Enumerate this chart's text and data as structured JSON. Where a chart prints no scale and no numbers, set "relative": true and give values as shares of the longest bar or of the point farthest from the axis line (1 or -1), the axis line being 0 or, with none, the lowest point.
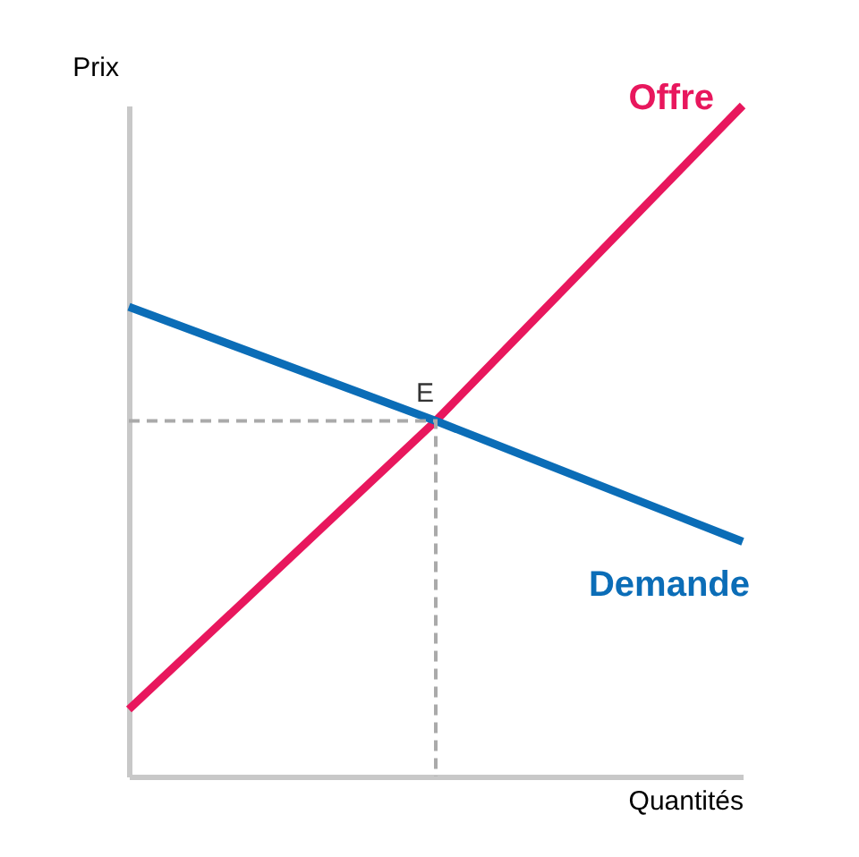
{
  "chart_data": {
    "type": "line",
    "relative": true,
    "xlabel": "Quantités",
    "ylabel": "Prix",
    "categories": [
      null,
      null,
      null
    ],
    "annotations": [
      {
        "text": "E",
        "y": 0.53
      }
    ],
    "series": [
      {
        "name": "Offre",
        "color": "#e8175d",
        "values": [
          0.1,
          0.53,
          1
        ]
      },
      {
        "name": "Demande",
        "color": "#0b6db7",
        "values": [
          0.7,
          0.53,
          0.35
        ]
      }
    ],
    "ref_lines": [
      {
        "axis": "y",
        "value": 0.53,
        "line_style": "dashed",
        "color": "#aaaaaa"
      }
    ]
  }
}
